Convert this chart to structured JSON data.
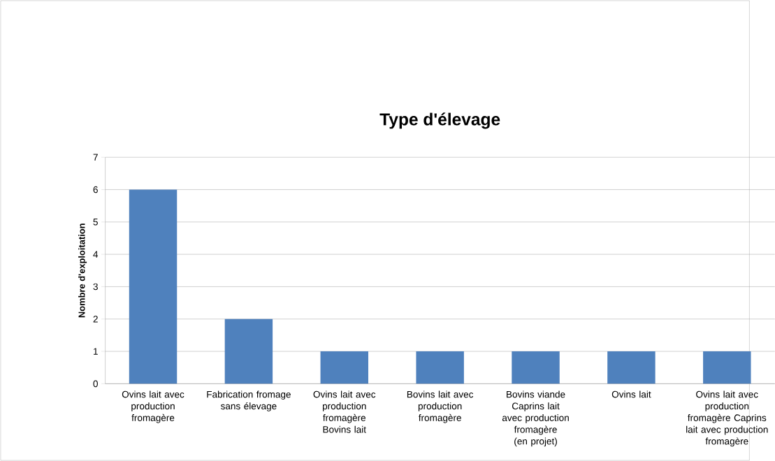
{
  "chart_data": {
    "type": "bar",
    "title": "Type d'élevage",
    "ylabel": "Nombre d'exploitation",
    "categories": [
      "Ovins lait avec production fromagère",
      "Fabrication fromage sans élevage",
      "Ovins lait avec production fromagère Bovins lait",
      "Bovins lait avec production fromagère",
      "Bovins viande Caprins lait avec production fromagère (en projet)",
      "Ovins lait",
      "Ovins lait avec production fromagère Caprins lait avec production fromagère"
    ],
    "values": [
      6,
      2,
      1,
      1,
      1,
      1,
      1
    ],
    "color": "#4f81bd",
    "ylim": [
      0,
      7
    ],
    "yticks": [
      0,
      1,
      2,
      3,
      4,
      5,
      6,
      7
    ],
    "grid": "y"
  }
}
